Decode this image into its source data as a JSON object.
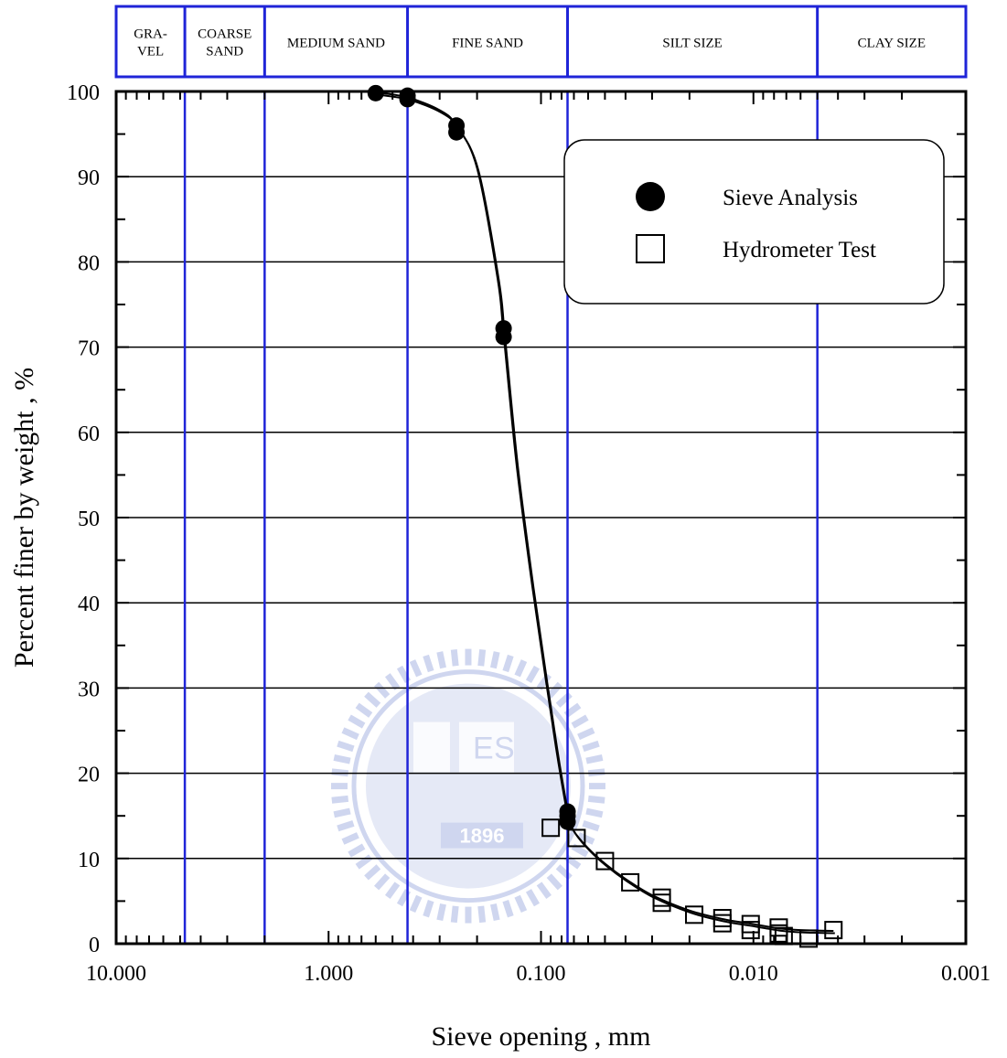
{
  "chart_data": {
    "type": "scatter",
    "xlabel": "Sieve opening , mm",
    "ylabel": "Percent finer by weight , %",
    "x_scale": "log",
    "x_reversed": true,
    "xlim": [
      10,
      0.001
    ],
    "ylim": [
      0,
      100
    ],
    "x_tick_labels": [
      "10.000",
      "1.000",
      "0.100",
      "0.010",
      "0.001"
    ],
    "x_tick_values": [
      10,
      1,
      0.1,
      0.01,
      0.001
    ],
    "y_ticks": [
      0,
      10,
      20,
      30,
      40,
      50,
      60,
      70,
      80,
      90,
      100
    ],
    "grid": "horizontal",
    "legend_position": "top-right",
    "soil_zones": [
      {
        "lines": [
          "GRA-",
          "VEL"
        ],
        "x_from": 10,
        "x_to": 4.75
      },
      {
        "lines": [
          "COARSE",
          "SAND"
        ],
        "x_from": 4.75,
        "x_to": 2.0
      },
      {
        "lines": [
          "MEDIUM SAND"
        ],
        "x_from": 2.0,
        "x_to": 0.425
      },
      {
        "lines": [
          "FINE SAND"
        ],
        "x_from": 0.425,
        "x_to": 0.075
      },
      {
        "lines": [
          "SILT SIZE"
        ],
        "x_from": 0.075,
        "x_to": 0.005
      },
      {
        "lines": [
          "CLAY SIZE"
        ],
        "x_from": 0.005,
        "x_to": 0.001
      }
    ],
    "zone_boundaries": [
      4.75,
      2.0,
      0.425,
      0.075,
      0.005
    ],
    "series": [
      {
        "name": "Sieve Analysis",
        "marker": "filled-circle",
        "x": [
          0.6,
          0.425,
          0.425,
          0.25,
          0.25,
          0.15,
          0.15,
          0.075,
          0.075,
          0.075
        ],
        "y": [
          99.8,
          99.5,
          99.1,
          96.0,
          95.2,
          72.2,
          71.2,
          15.5,
          15.0,
          14.3
        ]
      },
      {
        "name": "Hydrometer Test",
        "marker": "open-square",
        "x": [
          0.09,
          0.068,
          0.05,
          0.038,
          0.027,
          0.027,
          0.019,
          0.014,
          0.014,
          0.0103,
          0.0103,
          0.0076,
          0.0076,
          0.0072,
          0.0055,
          0.0042
        ],
        "y": [
          13.6,
          12.4,
          9.7,
          7.2,
          5.4,
          4.8,
          3.4,
          3.0,
          2.4,
          2.3,
          1.6,
          1.9,
          1.2,
          0.9,
          0.6,
          1.6
        ]
      }
    ],
    "curves": [
      {
        "x": [
          0.6,
          0.425,
          0.3,
          0.25,
          0.2,
          0.16,
          0.15,
          0.13,
          0.11,
          0.095,
          0.085,
          0.08,
          0.076,
          0.075,
          0.07,
          0.06,
          0.05,
          0.04,
          0.03,
          0.02,
          0.014,
          0.01,
          0.0076,
          0.006,
          0.0042
        ],
        "y": [
          99.9,
          99.3,
          97.8,
          96.0,
          91.0,
          78.0,
          71.5,
          56.0,
          42.0,
          31.0,
          23.0,
          19.0,
          15.8,
          14.8,
          13.2,
          11.2,
          9.4,
          7.6,
          5.7,
          3.9,
          2.9,
          2.3,
          1.8,
          1.6,
          1.5
        ],
        "offset": 0
      },
      {
        "x": [
          0.6,
          0.425,
          0.3,
          0.25,
          0.2,
          0.16,
          0.15,
          0.13,
          0.11,
          0.095,
          0.085,
          0.08,
          0.076,
          0.075,
          0.07,
          0.06,
          0.05,
          0.04,
          0.03,
          0.02,
          0.014,
          0.01,
          0.0076,
          0.006,
          0.0042
        ],
        "y": [
          99.9,
          99.3,
          97.8,
          96.0,
          91.0,
          78.0,
          71.5,
          56.0,
          42.0,
          31.0,
          23.0,
          19.0,
          15.8,
          14.8,
          13.2,
          11.2,
          9.4,
          7.6,
          5.7,
          3.9,
          2.9,
          2.3,
          1.8,
          1.6,
          1.5
        ],
        "offset": 1
      }
    ],
    "watermark": {
      "lines": [
        "E",
        "S"
      ],
      "year": "1896"
    },
    "colors": {
      "zone_lines": "#1f24d8",
      "axis": "#000000",
      "grid": "#000000",
      "watermark": "#2a49b8"
    }
  }
}
